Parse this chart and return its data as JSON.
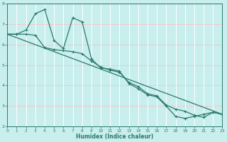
{
  "xlabel": "Humidex (Indice chaleur)",
  "bg_color": "#c8eeee",
  "grid_color_v": "#ffffff",
  "grid_color_h": "#f0c8c8",
  "line_color": "#2a7a6a",
  "xlim": [
    0,
    23
  ],
  "ylim": [
    2,
    8
  ],
  "yticks": [
    2,
    3,
    4,
    5,
    6,
    7,
    8
  ],
  "xticks": [
    0,
    1,
    2,
    3,
    4,
    5,
    6,
    7,
    8,
    9,
    10,
    11,
    12,
    13,
    14,
    15,
    16,
    17,
    18,
    19,
    20,
    21,
    22,
    23
  ],
  "series1_x": [
    0,
    1,
    2,
    3,
    4,
    5,
    6,
    7,
    8,
    9,
    10,
    11,
    12,
    13,
    14,
    15,
    16,
    17,
    18,
    19,
    20,
    21,
    22,
    23
  ],
  "series1_y": [
    6.5,
    6.5,
    6.7,
    7.5,
    7.7,
    6.2,
    5.8,
    7.3,
    7.1,
    5.3,
    4.85,
    4.8,
    4.7,
    4.1,
    3.85,
    3.55,
    3.45,
    3.0,
    2.5,
    2.4,
    2.5,
    2.6,
    2.7,
    2.6
  ],
  "series2_x": [
    0,
    1,
    2,
    3,
    4,
    5,
    6,
    7,
    8,
    9,
    10,
    11,
    12,
    13,
    14,
    15,
    16,
    17,
    18,
    19,
    20,
    21,
    22,
    23
  ],
  "series2_y": [
    6.5,
    6.5,
    6.5,
    6.45,
    5.85,
    5.75,
    5.7,
    5.65,
    5.55,
    5.2,
    4.9,
    4.75,
    4.65,
    4.15,
    3.95,
    3.6,
    3.5,
    3.05,
    2.85,
    2.75,
    2.55,
    2.45,
    2.7,
    2.6
  ],
  "series3_x": [
    0,
    23
  ],
  "series3_y": [
    6.5,
    2.6
  ]
}
